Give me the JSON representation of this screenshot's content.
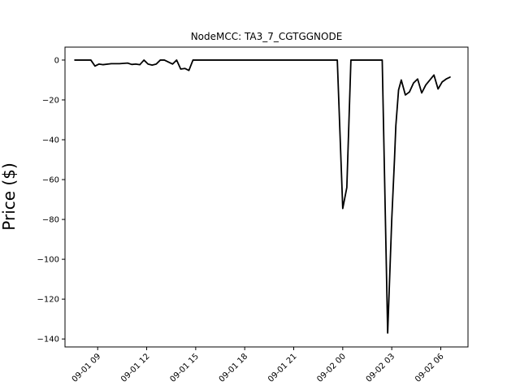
{
  "chart_data": {
    "type": "line",
    "title": "NodeMCC: TA3_7_CGTGGNODE",
    "xlabel": "",
    "ylabel": "Price ($)",
    "ylim": [
      -144,
      6.5
    ],
    "xlim": [
      "2024-09-01 07:00",
      "2024-09-02 07:40"
    ],
    "x_tick_labels": [
      "09-01 09",
      "09-01 12",
      "09-01 15",
      "09-01 18",
      "09-01 21",
      "09-02 00",
      "09-02 03",
      "09-02 06"
    ],
    "x_ticks": [
      "2024-09-01 09:00",
      "2024-09-01 12:00",
      "2024-09-01 15:00",
      "2024-09-01 18:00",
      "2024-09-01 21:00",
      "2024-09-02 00:00",
      "2024-09-02 03:00",
      "2024-09-02 06:00"
    ],
    "y_ticks": [
      0,
      -20,
      -40,
      -60,
      -80,
      -100,
      -120,
      -140
    ],
    "y_tick_labels": [
      "0",
      "−20",
      "−40",
      "−60",
      "−80",
      "−100",
      "−120",
      "−140"
    ],
    "grid": false,
    "series": [
      {
        "color": "#000000",
        "points": [
          [
            "2024-09-01 07:35",
            0
          ],
          [
            "2024-09-01 08:00",
            0
          ],
          [
            "2024-09-01 08:35",
            0
          ],
          [
            "2024-09-01 08:50",
            -3
          ],
          [
            "2024-09-01 09:05",
            -2
          ],
          [
            "2024-09-01 09:20",
            -2.3
          ],
          [
            "2024-09-01 09:50",
            -1.8
          ],
          [
            "2024-09-01 10:20",
            -1.8
          ],
          [
            "2024-09-01 10:50",
            -1.5
          ],
          [
            "2024-09-01 11:05",
            -2.2
          ],
          [
            "2024-09-01 11:20",
            -2
          ],
          [
            "2024-09-01 11:35",
            -2.3
          ],
          [
            "2024-09-01 11:50",
            0
          ],
          [
            "2024-09-01 12:05",
            -2
          ],
          [
            "2024-09-01 12:20",
            -2.5
          ],
          [
            "2024-09-01 12:35",
            -2
          ],
          [
            "2024-09-01 12:50",
            0
          ],
          [
            "2024-09-01 13:05",
            0
          ],
          [
            "2024-09-01 13:35",
            -2
          ],
          [
            "2024-09-01 13:50",
            0
          ],
          [
            "2024-09-01 14:05",
            -4.5
          ],
          [
            "2024-09-01 14:20",
            -4.2
          ],
          [
            "2024-09-01 14:35",
            -5.2
          ],
          [
            "2024-09-01 14:50",
            0
          ],
          [
            "2024-09-01 17:00",
            0
          ],
          [
            "2024-09-01 20:00",
            0
          ],
          [
            "2024-09-01 23:40",
            0
          ],
          [
            "2024-09-02 00:00",
            -74.5
          ],
          [
            "2024-09-02 00:15",
            -64
          ],
          [
            "2024-09-02 00:30",
            0
          ],
          [
            "2024-09-02 01:30",
            0
          ],
          [
            "2024-09-02 02:25",
            0
          ],
          [
            "2024-09-02 02:45",
            -137
          ],
          [
            "2024-09-02 03:00",
            -80
          ],
          [
            "2024-09-02 03:10",
            -50
          ],
          [
            "2024-09-02 03:15",
            -33
          ],
          [
            "2024-09-02 03:25",
            -15
          ],
          [
            "2024-09-02 03:35",
            -10
          ],
          [
            "2024-09-02 03:50",
            -17.5
          ],
          [
            "2024-09-02 04:05",
            -16
          ],
          [
            "2024-09-02 04:20",
            -11.5
          ],
          [
            "2024-09-02 04:35",
            -9.5
          ],
          [
            "2024-09-02 04:50",
            -16.5
          ],
          [
            "2024-09-02 05:05",
            -12.5
          ],
          [
            "2024-09-02 05:35",
            -7.5
          ],
          [
            "2024-09-02 05:50",
            -14.5
          ],
          [
            "2024-09-02 06:05",
            -11
          ],
          [
            "2024-09-02 06:20",
            -9.5
          ],
          [
            "2024-09-02 06:35",
            -8.5
          ]
        ]
      }
    ]
  }
}
